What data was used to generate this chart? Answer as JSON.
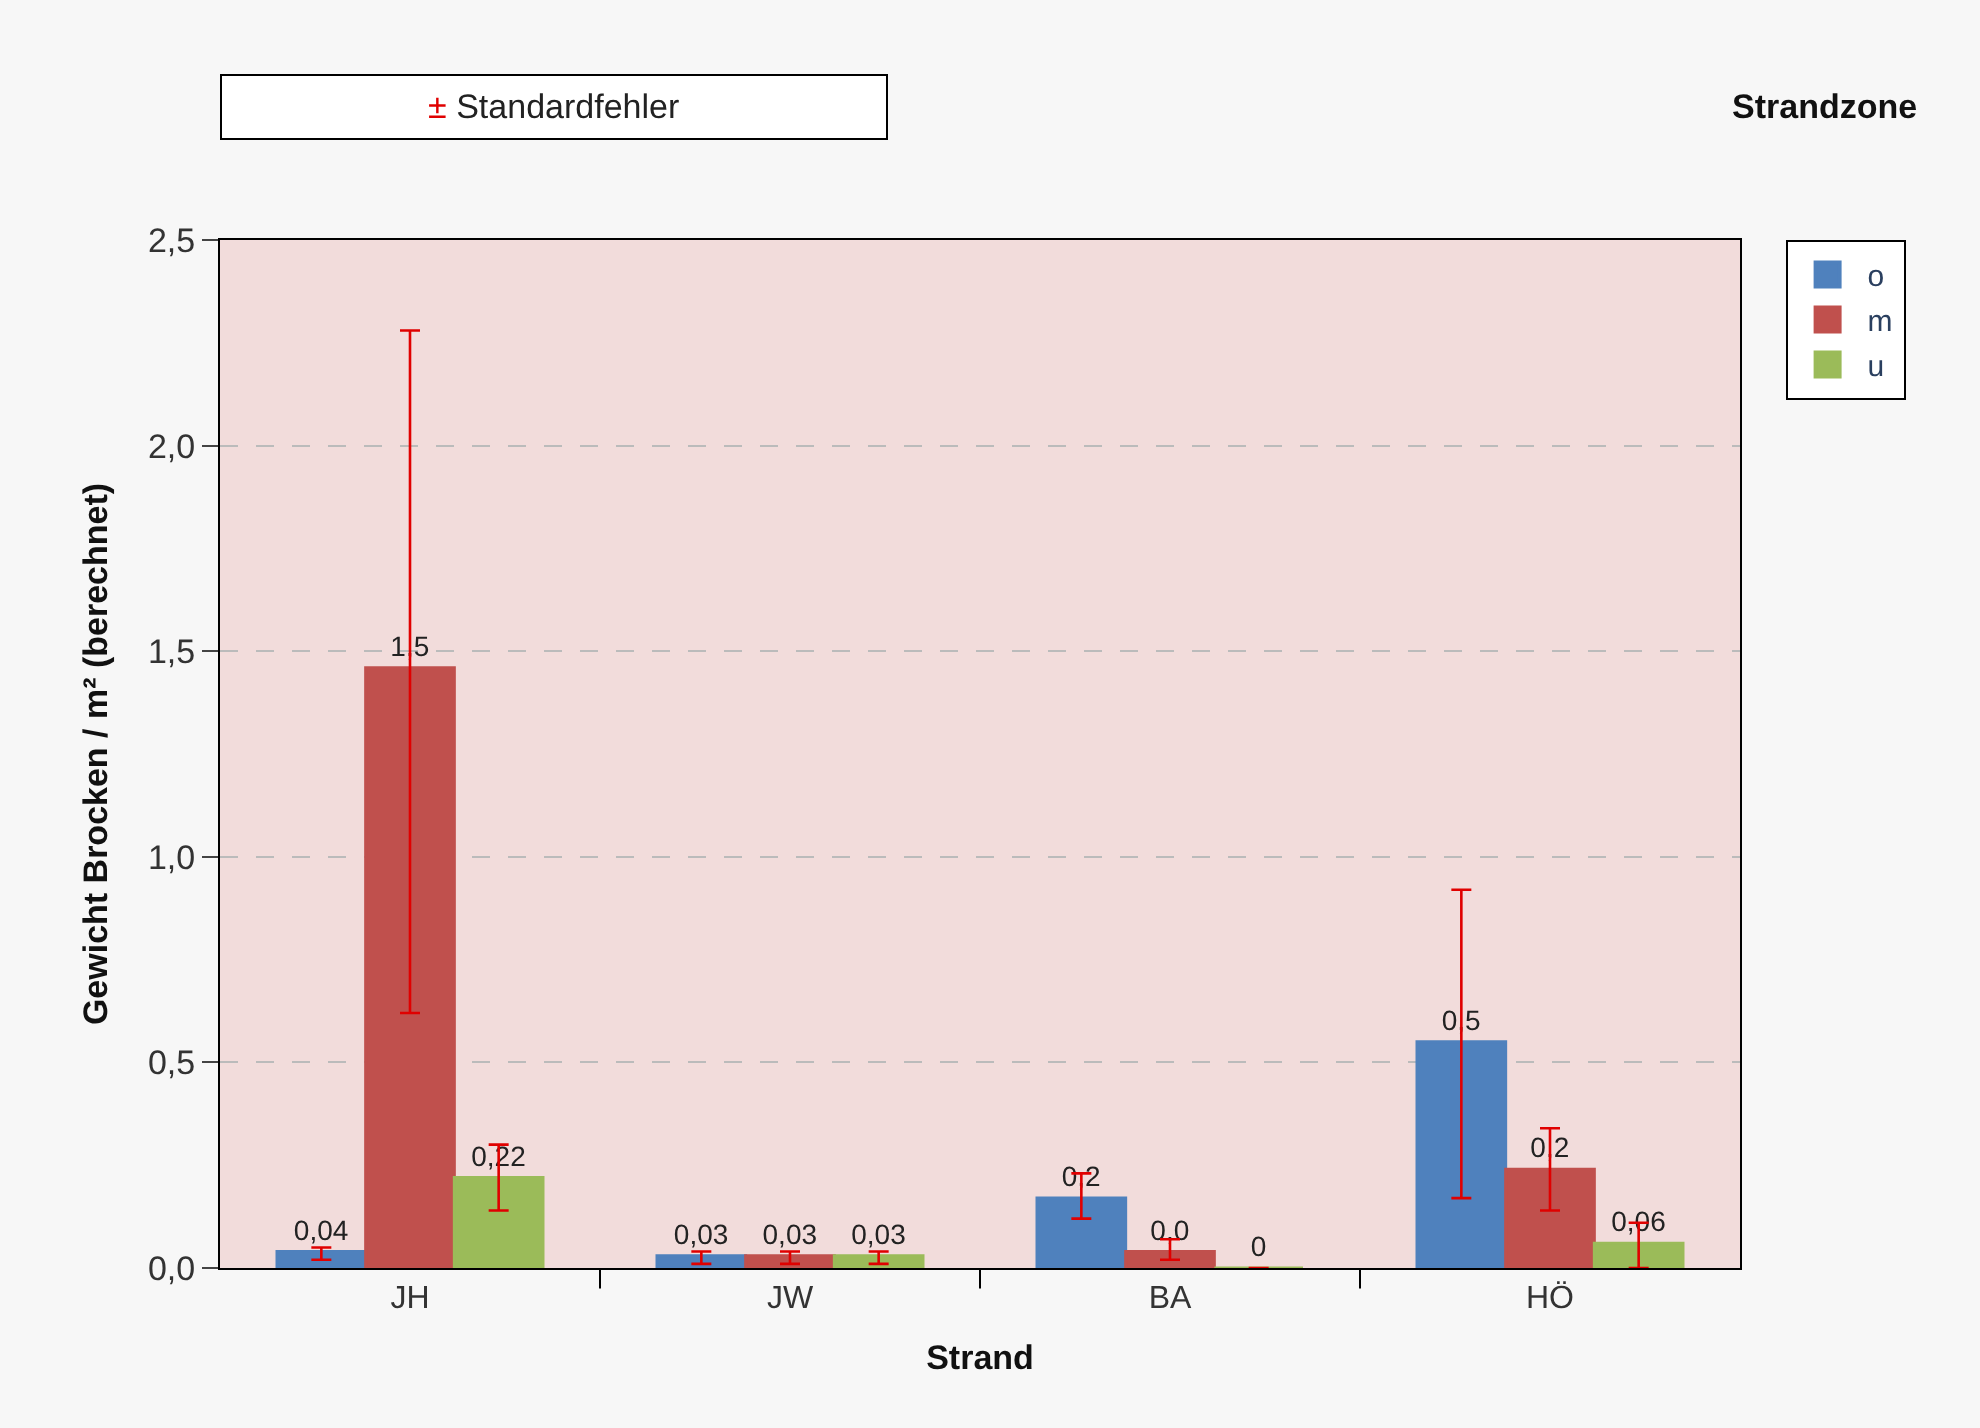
{
  "chart_data": {
    "type": "bar",
    "xlabel": "Strand",
    "ylabel": "Gewicht Brocken / m² (berechnet)",
    "legend_title": "Strandzone",
    "categories": [
      "JH",
      "JW",
      "BA",
      "HÖ"
    ],
    "series": [
      {
        "name": "o",
        "color": "#4f81bd",
        "values": [
          0.04,
          0.03,
          0.17,
          0.55
        ],
        "errors": [
          [
            0.02,
            0.05
          ],
          [
            0.01,
            0.04
          ],
          [
            0.12,
            0.23
          ],
          [
            0.17,
            0.92
          ]
        ],
        "value_labels": [
          "0,04",
          "0,03",
          "0,2",
          "0,5"
        ]
      },
      {
        "name": "m",
        "color": "#c0504d",
        "values": [
          1.46,
          0.03,
          0.04,
          0.24
        ],
        "errors": [
          [
            0.62,
            2.28
          ],
          [
            0.01,
            0.04
          ],
          [
            0.02,
            0.07
          ],
          [
            0.14,
            0.34
          ]
        ],
        "value_labels": [
          "1,5",
          "0,03",
          "0,0",
          "0,2"
        ]
      },
      {
        "name": "u",
        "color": "#9bbb59",
        "values": [
          0.22,
          0.03,
          0,
          0.06
        ],
        "errors": [
          [
            0.14,
            0.3
          ],
          [
            0.01,
            0.04
          ],
          null,
          [
            0.0,
            0.11
          ]
        ],
        "value_labels": [
          "0,22",
          "0,03",
          "0",
          "0,06"
        ]
      }
    ],
    "ylim": [
      0,
      2.5
    ],
    "yticks": [
      {
        "value": 0,
        "label": "0,0"
      },
      {
        "value": 0.5,
        "label": "0,5"
      },
      {
        "value": 1,
        "label": "1,0"
      },
      {
        "value": 1.5,
        "label": "1,5"
      },
      {
        "value": 2,
        "label": "2,0"
      },
      {
        "value": 2.5,
        "label": "2,5"
      }
    ],
    "grid": "y",
    "legend": "right",
    "annotations": [
      "± Standardfehler"
    ]
  }
}
